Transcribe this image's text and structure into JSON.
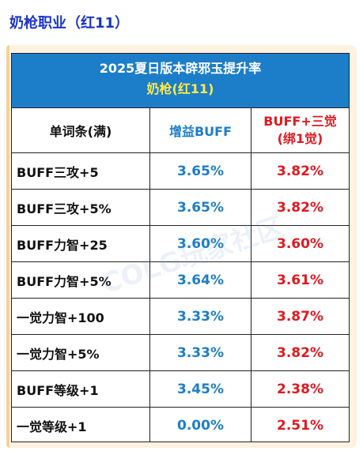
{
  "heading": "奶枪职业（红11）",
  "banner": {
    "title": "2025夏日版本辟邪玉提升率",
    "subtitle": "奶枪(红11)"
  },
  "headers": {
    "col1": "单词条(满)",
    "col2": "增益BUFF",
    "col3_line1": "BUFF+三觉",
    "col3_line2": "(绑1觉)"
  },
  "rows": [
    {
      "name": "BUFF三攻+5",
      "buff": "3.65%",
      "buff_awaken": "3.82%"
    },
    {
      "name": "BUFF三攻+5%",
      "buff": "3.65%",
      "buff_awaken": "3.82%"
    },
    {
      "name": "BUFF力智+25",
      "buff": "3.60%",
      "buff_awaken": "3.60%"
    },
    {
      "name": "BUFF力智+5%",
      "buff": "3.64%",
      "buff_awaken": "3.61%"
    },
    {
      "name": "一觉力智+100",
      "buff": "3.33%",
      "buff_awaken": "3.87%"
    },
    {
      "name": "一觉力智+5%",
      "buff": "3.33%",
      "buff_awaken": "3.82%"
    },
    {
      "name": "BUFF等级+1",
      "buff": "3.45%",
      "buff_awaken": "2.38%"
    },
    {
      "name": "一觉等级+1",
      "buff": "0.00%",
      "buff_awaken": "2.51%"
    }
  ],
  "watermark": "COLG玩家社区"
}
